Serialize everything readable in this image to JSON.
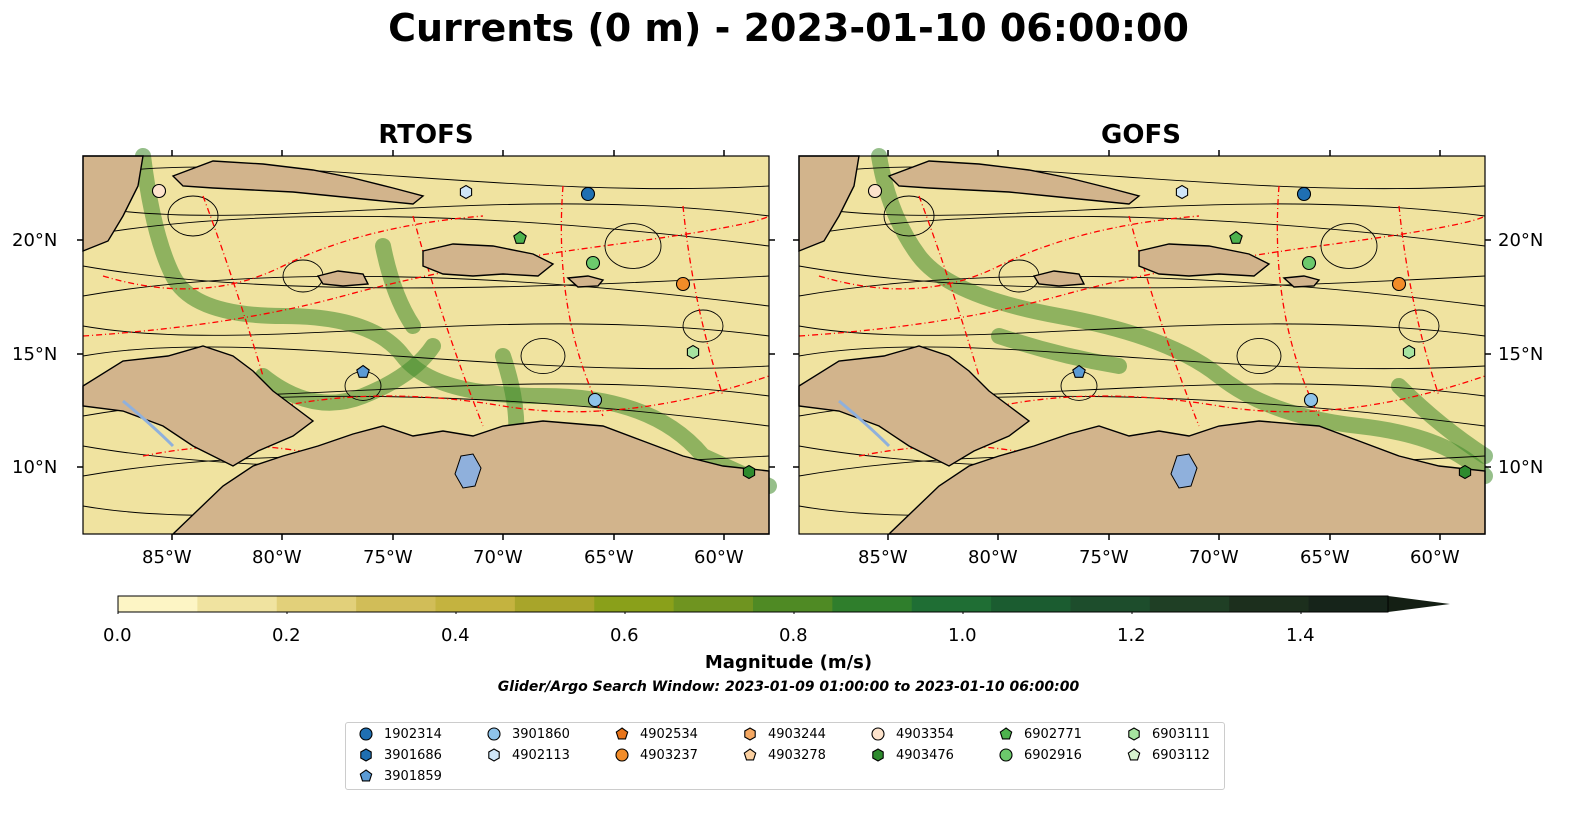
{
  "figure": {
    "title": "Currents (0 m) - 2023-01-10 06:00:00"
  },
  "panels": [
    {
      "title": "RTOFS"
    },
    {
      "title": "GOFS"
    }
  ],
  "axes": {
    "lon_ticks": [
      "85°W",
      "80°W",
      "75°W",
      "70°W",
      "65°W",
      "60°W"
    ],
    "lat_ticks": [
      "20°N",
      "15°N",
      "10°N"
    ]
  },
  "colorbar": {
    "label": "Magnitude (m/s)",
    "ticks": [
      "0.0",
      "0.2",
      "0.4",
      "0.6",
      "0.8",
      "1.0",
      "1.2",
      "1.4"
    ],
    "colors": [
      "#fdf5c5",
      "#f0e3a0",
      "#e2d07a",
      "#d1bd58",
      "#c4b33f",
      "#a8a52a",
      "#8aa01a",
      "#6f9420",
      "#4f8a24",
      "#2f7e2c",
      "#1f6e34",
      "#1b5c30",
      "#1d4d2c",
      "#1f3f25",
      "#1c2f1d",
      "#16241a"
    ]
  },
  "search_window": "Glider/Argo Search Window: 2023-01-09 01:00:00 to 2023-01-10 06:00:00",
  "legend": [
    {
      "id": "1902314",
      "shape": "circle",
      "color": "#1f6fb2"
    },
    {
      "id": "3901686",
      "shape": "hexagon",
      "color": "#1f6fb2"
    },
    {
      "id": "3901859",
      "shape": "pentagon",
      "color": "#5b9bd5"
    },
    {
      "id": "3901860",
      "shape": "circle",
      "color": "#8ec3ea"
    },
    {
      "id": "4902113",
      "shape": "hexagon",
      "color": "#cfe6f8"
    },
    {
      "id": "4902534",
      "shape": "pentagon",
      "color": "#e8741a"
    },
    {
      "id": "4903237",
      "shape": "circle",
      "color": "#f28c28"
    },
    {
      "id": "4903244",
      "shape": "hexagon",
      "color": "#f5a862"
    },
    {
      "id": "4903278",
      "shape": "pentagon",
      "color": "#fbd0a0"
    },
    {
      "id": "4903354",
      "shape": "circle",
      "color": "#fde3cc"
    },
    {
      "id": "4903476",
      "shape": "hexagon",
      "color": "#2e8b2e"
    },
    {
      "id": "6902771",
      "shape": "pentagon",
      "color": "#4db34d"
    },
    {
      "id": "6902916",
      "shape": "circle",
      "color": "#6cc96c"
    },
    {
      "id": "6903111",
      "shape": "hexagon",
      "color": "#a6e3a0"
    },
    {
      "id": "6903112",
      "shape": "pentagon",
      "color": "#d6f3cf"
    }
  ],
  "map_colors": {
    "land": "#d2b48c",
    "ocean": "#f0e3a0",
    "jet": "#3f8a2a",
    "eez": "#ff0000",
    "lake": "#8fb0dc"
  }
}
